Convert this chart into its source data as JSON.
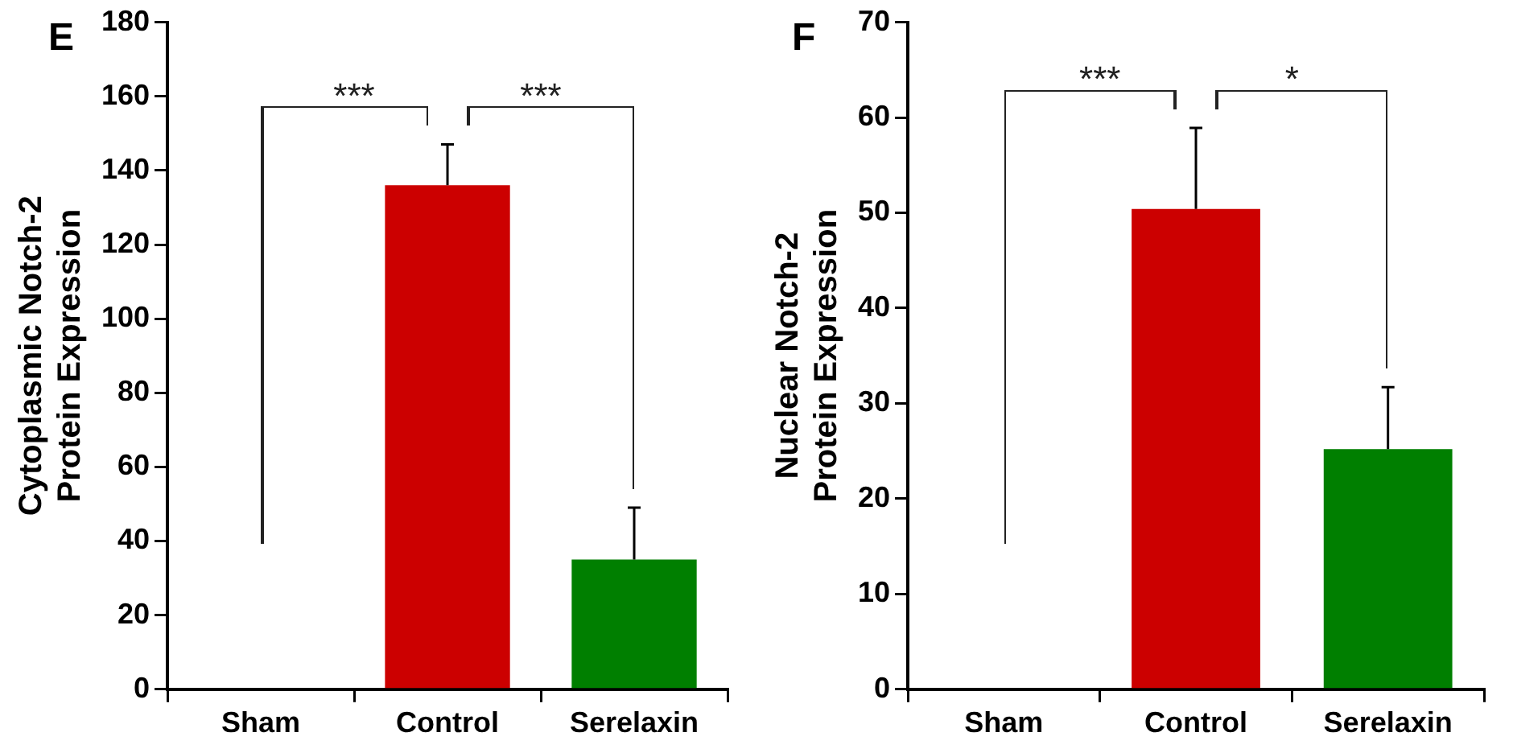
{
  "chart_data": [
    {
      "type": "bar",
      "title": "E",
      "ylabel": "Cytoplasmic Notch-2\nProtein Expression",
      "categories": [
        "Sham",
        "Control",
        "Serelaxin"
      ],
      "values": [
        0,
        136,
        35
      ],
      "colors": [
        "#cc0000",
        "#cc0000",
        "#007f00"
      ],
      "errors": [
        null,
        [
          136,
          147
        ],
        [
          35,
          49
        ]
      ],
      "ylim": [
        0,
        180
      ],
      "yticks": [
        0,
        20,
        40,
        60,
        80,
        100,
        120,
        140,
        160,
        180
      ],
      "grid": false,
      "legend": false,
      "annotations": [
        "***",
        "***"
      ]
    },
    {
      "type": "bar",
      "title": "F",
      "ylabel": "Nuclear Notch-2\nProtein Expression",
      "categories": [
        "Sham",
        "Control",
        "Serelaxin"
      ],
      "values": [
        0,
        50.4,
        25.2
      ],
      "colors": [
        "#cc0000",
        "#cc0000",
        "#007f00"
      ],
      "errors": [
        null,
        [
          50.4,
          58.9
        ],
        [
          25.2,
          31.7
        ]
      ],
      "ylim": [
        0,
        70
      ],
      "yticks": [
        0,
        10,
        20,
        30,
        40,
        50,
        60,
        70
      ],
      "grid": false,
      "legend": false,
      "annotations": [
        "***",
        "*"
      ]
    }
  ]
}
